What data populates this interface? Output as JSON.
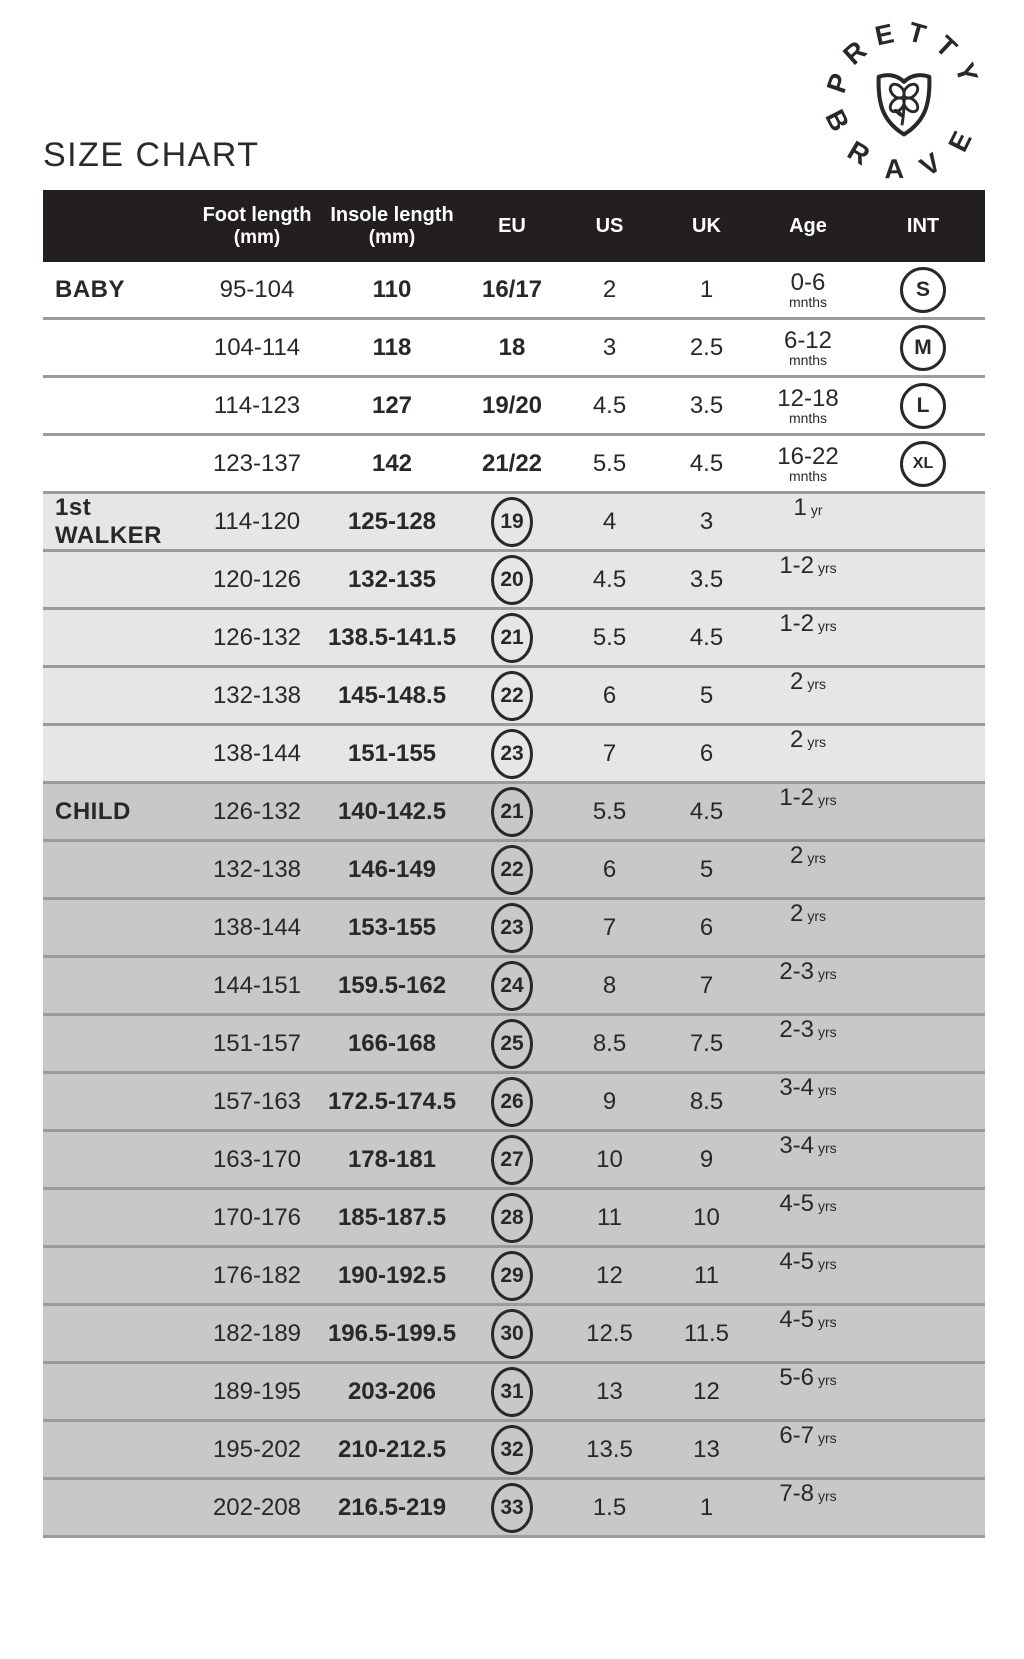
{
  "page": {
    "title": "SIZE CHART"
  },
  "logo": {
    "arc_top": "PRETTY",
    "arc_bottom": "BRAVE",
    "icon": "shield-clover-icon"
  },
  "colors": {
    "header_bg": "#231f20",
    "walker_bg": "#e6e6e6",
    "child_bg": "#c8c8c9",
    "separator": "#9b9b9b",
    "text": "#2b2728"
  },
  "table": {
    "headers": {
      "section": "",
      "foot": {
        "label": "Foot length",
        "sub": "(mm)"
      },
      "insole": {
        "label": "Insole length",
        "sub": "(mm)"
      },
      "eu": "EU",
      "us": "US",
      "uk": "UK",
      "age": "Age",
      "int": "INT"
    },
    "sections": [
      {
        "name": "BABY",
        "style": "baby",
        "rows": [
          {
            "foot": "95-104",
            "insole": "110",
            "eu": "16/17",
            "eu_circled": false,
            "us": "2",
            "uk": "1",
            "age": "0-6",
            "age_unit": "mnths",
            "age_stacked": true,
            "int": "S"
          },
          {
            "foot": "104-114",
            "insole": "118",
            "eu": "18",
            "eu_circled": false,
            "us": "3",
            "uk": "2.5",
            "age": "6-12",
            "age_unit": "mnths",
            "age_stacked": true,
            "int": "M"
          },
          {
            "foot": "114-123",
            "insole": "127",
            "eu": "19/20",
            "eu_circled": false,
            "us": "4.5",
            "uk": "3.5",
            "age": "12-18",
            "age_unit": "mnths",
            "age_stacked": true,
            "int": "L"
          },
          {
            "foot": "123-137",
            "insole": "142",
            "eu": "21/22",
            "eu_circled": false,
            "us": "5.5",
            "uk": "4.5",
            "age": "16-22",
            "age_unit": "mnths",
            "age_stacked": true,
            "int": "XL"
          }
        ]
      },
      {
        "name": "1st WALKER",
        "style": "walker",
        "rows": [
          {
            "foot": "114-120",
            "insole": "125-128",
            "eu": "19",
            "eu_circled": true,
            "us": "4",
            "uk": "3",
            "age": "1",
            "age_unit": "yr",
            "age_stacked": false,
            "int": ""
          },
          {
            "foot": "120-126",
            "insole": "132-135",
            "eu": "20",
            "eu_circled": true,
            "us": "4.5",
            "uk": "3.5",
            "age": "1-2",
            "age_unit": "yrs",
            "age_stacked": false,
            "int": ""
          },
          {
            "foot": "126-132",
            "insole": "138.5-141.5",
            "eu": "21",
            "eu_circled": true,
            "us": "5.5",
            "uk": "4.5",
            "age": "1-2",
            "age_unit": "yrs",
            "age_stacked": false,
            "int": ""
          },
          {
            "foot": "132-138",
            "insole": "145-148.5",
            "eu": "22",
            "eu_circled": true,
            "us": "6",
            "uk": "5",
            "age": "2",
            "age_unit": "yrs",
            "age_stacked": false,
            "int": ""
          },
          {
            "foot": "138-144",
            "insole": "151-155",
            "eu": "23",
            "eu_circled": true,
            "us": "7",
            "uk": "6",
            "age": "2",
            "age_unit": "yrs",
            "age_stacked": false,
            "int": ""
          }
        ]
      },
      {
        "name": "CHILD",
        "style": "child",
        "rows": [
          {
            "foot": "126-132",
            "insole": "140-142.5",
            "eu": "21",
            "eu_circled": true,
            "us": "5.5",
            "uk": "4.5",
            "age": "1-2",
            "age_unit": "yrs",
            "age_stacked": false,
            "int": ""
          },
          {
            "foot": "132-138",
            "insole": "146-149",
            "eu": "22",
            "eu_circled": true,
            "us": "6",
            "uk": "5",
            "age": "2",
            "age_unit": "yrs",
            "age_stacked": false,
            "int": ""
          },
          {
            "foot": "138-144",
            "insole": "153-155",
            "eu": "23",
            "eu_circled": true,
            "us": "7",
            "uk": "6",
            "age": "2",
            "age_unit": "yrs",
            "age_stacked": false,
            "int": ""
          },
          {
            "foot": "144-151",
            "insole": "159.5-162",
            "eu": "24",
            "eu_circled": true,
            "us": "8",
            "uk": "7",
            "age": "2-3",
            "age_unit": "yrs",
            "age_stacked": false,
            "int": ""
          },
          {
            "foot": "151-157",
            "insole": "166-168",
            "eu": "25",
            "eu_circled": true,
            "us": "8.5",
            "uk": "7.5",
            "age": "2-3",
            "age_unit": "yrs",
            "age_stacked": false,
            "int": ""
          },
          {
            "foot": "157-163",
            "insole": "172.5-174.5",
            "eu": "26",
            "eu_circled": true,
            "us": "9",
            "uk": "8.5",
            "age": "3-4",
            "age_unit": "yrs",
            "age_stacked": false,
            "int": ""
          },
          {
            "foot": "163-170",
            "insole": "178-181",
            "eu": "27",
            "eu_circled": true,
            "us": "10",
            "uk": "9",
            "age": "3-4",
            "age_unit": "yrs",
            "age_stacked": false,
            "int": ""
          },
          {
            "foot": "170-176",
            "insole": "185-187.5",
            "eu": "28",
            "eu_circled": true,
            "us": "11",
            "uk": "10",
            "age": "4-5",
            "age_unit": "yrs",
            "age_stacked": false,
            "int": ""
          },
          {
            "foot": "176-182",
            "insole": "190-192.5",
            "eu": "29",
            "eu_circled": true,
            "us": "12",
            "uk": "11",
            "age": "4-5",
            "age_unit": "yrs",
            "age_stacked": false,
            "int": ""
          },
          {
            "foot": "182-189",
            "insole": "196.5-199.5",
            "eu": "30",
            "eu_circled": true,
            "us": "12.5",
            "uk": "11.5",
            "age": "4-5",
            "age_unit": "yrs",
            "age_stacked": false,
            "int": ""
          },
          {
            "foot": "189-195",
            "insole": "203-206",
            "eu": "31",
            "eu_circled": true,
            "us": "13",
            "uk": "12",
            "age": "5-6",
            "age_unit": "yrs",
            "age_stacked": false,
            "int": ""
          },
          {
            "foot": "195-202",
            "insole": "210-212.5",
            "eu": "32",
            "eu_circled": true,
            "us": "13.5",
            "uk": "13",
            "age": "6-7",
            "age_unit": "yrs",
            "age_stacked": false,
            "int": ""
          },
          {
            "foot": "202-208",
            "insole": "216.5-219",
            "eu": "33",
            "eu_circled": true,
            "us": "1.5",
            "uk": "1",
            "age": "7-8",
            "age_unit": "yrs",
            "age_stacked": false,
            "int": ""
          }
        ]
      }
    ]
  }
}
